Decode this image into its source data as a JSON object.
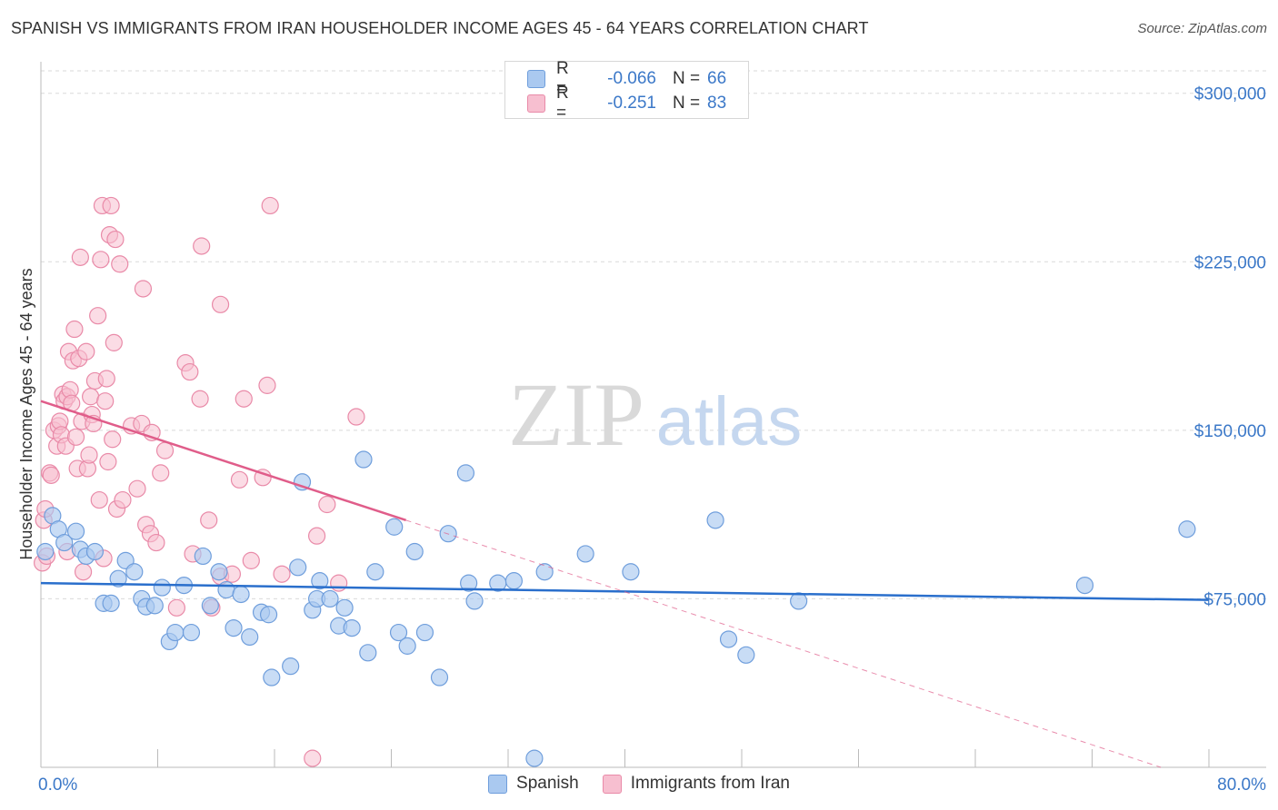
{
  "title": "SPANISH VS IMMIGRANTS FROM IRAN HOUSEHOLDER INCOME AGES 45 - 64 YEARS CORRELATION CHART",
  "source": "Source: ZipAtlas.com",
  "watermark": {
    "zip": "ZIP",
    "atlas": "atlas"
  },
  "colors": {
    "spanish_fill": "#aac9f0",
    "spanish_stroke": "#6f9edc",
    "spanish_line": "#2a6fcc",
    "iran_fill": "#f7bfd0",
    "iran_stroke": "#e98aa8",
    "iran_line": "#e05d8a",
    "value_text": "#3b78c8",
    "grid": "#d9d9d9"
  },
  "legend": {
    "spanish": {
      "r_label": "R =",
      "r_value": "-0.066",
      "n_label": "N =",
      "n_value": "66"
    },
    "iran": {
      "r_label": "R =",
      "r_value": "-0.251",
      "n_label": "N =",
      "n_value": "83"
    }
  },
  "chart_data": {
    "type": "scatter",
    "title": "SPANISH VS IMMIGRANTS FROM IRAN HOUSEHOLDER INCOME AGES 45 - 64 YEARS CORRELATION CHART",
    "xlabel": "",
    "ylabel": "Householder Income Ages 45 - 64 years",
    "xlim": [
      0,
      80
    ],
    "ylim": [
      0,
      310000
    ],
    "x_tick_labels": {
      "min": "0.0%",
      "max": "80.0%"
    },
    "y_ticks": [
      {
        "value": 75000,
        "label": "$75,000"
      },
      {
        "value": 150000,
        "label": "$150,000"
      },
      {
        "value": 225000,
        "label": "$225,000"
      },
      {
        "value": 300000,
        "label": "$300,000"
      }
    ],
    "legend_position": "bottom-center",
    "series": [
      {
        "name": "Spanish",
        "r": -0.066,
        "n": 66,
        "trend": {
          "x_start": 0,
          "y_start": 82000,
          "x_end": 80,
          "y_end": 74500
        },
        "points": [
          [
            0.3,
            96000
          ],
          [
            0.8,
            112000
          ],
          [
            1.2,
            106000
          ],
          [
            1.6,
            100000
          ],
          [
            2.4,
            105000
          ],
          [
            2.7,
            97000
          ],
          [
            3.1,
            94000
          ],
          [
            3.7,
            96000
          ],
          [
            4.3,
            73000
          ],
          [
            4.8,
            73000
          ],
          [
            5.3,
            84000
          ],
          [
            5.8,
            92000
          ],
          [
            6.4,
            87000
          ],
          [
            6.9,
            75000
          ],
          [
            7.2,
            71500
          ],
          [
            7.8,
            72000
          ],
          [
            8.3,
            80000
          ],
          [
            8.8,
            56000
          ],
          [
            9.2,
            60000
          ],
          [
            9.8,
            81000
          ],
          [
            10.3,
            60000
          ],
          [
            11.1,
            94000
          ],
          [
            11.6,
            72000
          ],
          [
            12.2,
            87000
          ],
          [
            12.7,
            79000
          ],
          [
            13.2,
            62000
          ],
          [
            13.7,
            77000
          ],
          [
            14.3,
            58000
          ],
          [
            15.1,
            69000
          ],
          [
            15.6,
            68000
          ],
          [
            15.8,
            40000
          ],
          [
            17.1,
            45000
          ],
          [
            17.6,
            89000
          ],
          [
            17.9,
            127000
          ],
          [
            18.6,
            70000
          ],
          [
            19.1,
            83000
          ],
          [
            18.9,
            75000
          ],
          [
            19.8,
            75000
          ],
          [
            20.4,
            63000
          ],
          [
            20.8,
            71000
          ],
          [
            21.3,
            62000
          ],
          [
            22.1,
            137000
          ],
          [
            22.4,
            51000
          ],
          [
            22.9,
            87000
          ],
          [
            24.2,
            107000
          ],
          [
            24.5,
            60000
          ],
          [
            25.1,
            54000
          ],
          [
            25.6,
            96000
          ],
          [
            26.3,
            60000
          ],
          [
            27.3,
            40000
          ],
          [
            27.9,
            104000
          ],
          [
            29.1,
            131000
          ],
          [
            29.3,
            82000
          ],
          [
            29.7,
            74000
          ],
          [
            31.3,
            82000
          ],
          [
            32.4,
            83000
          ],
          [
            33.8,
            4000
          ],
          [
            34.5,
            87000
          ],
          [
            37.3,
            95000
          ],
          [
            40.4,
            87000
          ],
          [
            46.2,
            110000
          ],
          [
            47.1,
            57000
          ],
          [
            48.3,
            50000
          ],
          [
            51.9,
            74000
          ],
          [
            71.5,
            81000
          ],
          [
            78.5,
            106000
          ]
        ]
      },
      {
        "name": "Immigrants from Iran",
        "r": -0.251,
        "n": 83,
        "trend": {
          "x_start": 0,
          "y_start": 163000,
          "x_end": 25,
          "y_end": 110000
        },
        "trend_dashed": {
          "x_start": 25,
          "y_start": 110000,
          "x_end": 80,
          "y_end": -7000
        },
        "points": [
          [
            0.1,
            91000
          ],
          [
            0.2,
            110000
          ],
          [
            0.3,
            115000
          ],
          [
            0.4,
            94000
          ],
          [
            0.6,
            131000
          ],
          [
            0.7,
            130000
          ],
          [
            0.9,
            150000
          ],
          [
            1.1,
            143000
          ],
          [
            1.2,
            152000
          ],
          [
            1.3,
            154000
          ],
          [
            1.4,
            148000
          ],
          [
            1.5,
            166000
          ],
          [
            1.6,
            163000
          ],
          [
            1.7,
            143000
          ],
          [
            1.8,
            165000
          ],
          [
            1.8,
            96000
          ],
          [
            1.9,
            185000
          ],
          [
            2.0,
            168000
          ],
          [
            2.1,
            162000
          ],
          [
            2.2,
            181000
          ],
          [
            2.3,
            195000
          ],
          [
            2.4,
            147000
          ],
          [
            2.5,
            133000
          ],
          [
            2.6,
            182000
          ],
          [
            2.7,
            227000
          ],
          [
            2.8,
            154000
          ],
          [
            2.9,
            87000
          ],
          [
            3.1,
            185000
          ],
          [
            3.2,
            133000
          ],
          [
            3.3,
            139000
          ],
          [
            3.4,
            165000
          ],
          [
            3.5,
            157000
          ],
          [
            3.6,
            153000
          ],
          [
            3.7,
            172000
          ],
          [
            3.9,
            201000
          ],
          [
            4.0,
            119000
          ],
          [
            4.1,
            226000
          ],
          [
            4.2,
            250000
          ],
          [
            4.3,
            93000
          ],
          [
            4.4,
            163000
          ],
          [
            4.5,
            173000
          ],
          [
            4.6,
            136000
          ],
          [
            4.7,
            237000
          ],
          [
            4.8,
            250000
          ],
          [
            4.9,
            146000
          ],
          [
            5.0,
            189000
          ],
          [
            5.1,
            235000
          ],
          [
            5.2,
            115000
          ],
          [
            5.4,
            224000
          ],
          [
            5.6,
            119000
          ],
          [
            6.2,
            152000
          ],
          [
            6.6,
            124000
          ],
          [
            6.9,
            153000
          ],
          [
            7.0,
            213000
          ],
          [
            7.2,
            108000
          ],
          [
            7.5,
            104000
          ],
          [
            7.6,
            149000
          ],
          [
            7.9,
            100000
          ],
          [
            8.2,
            131000
          ],
          [
            8.5,
            141000
          ],
          [
            9.3,
            71000
          ],
          [
            9.9,
            180000
          ],
          [
            10.2,
            176000
          ],
          [
            10.4,
            95000
          ],
          [
            10.9,
            164000
          ],
          [
            11.0,
            232000
          ],
          [
            11.5,
            110000
          ],
          [
            11.7,
            71000
          ],
          [
            12.3,
            85000
          ],
          [
            12.3,
            206000
          ],
          [
            13.1,
            86000
          ],
          [
            13.6,
            128000
          ],
          [
            13.9,
            164000
          ],
          [
            14.4,
            92000
          ],
          [
            15.2,
            129000
          ],
          [
            15.5,
            170000
          ],
          [
            15.7,
            250000
          ],
          [
            16.5,
            86000
          ],
          [
            18.6,
            4000
          ],
          [
            18.9,
            103000
          ],
          [
            19.6,
            117000
          ],
          [
            20.4,
            82000
          ],
          [
            21.6,
            156000
          ]
        ]
      }
    ]
  }
}
